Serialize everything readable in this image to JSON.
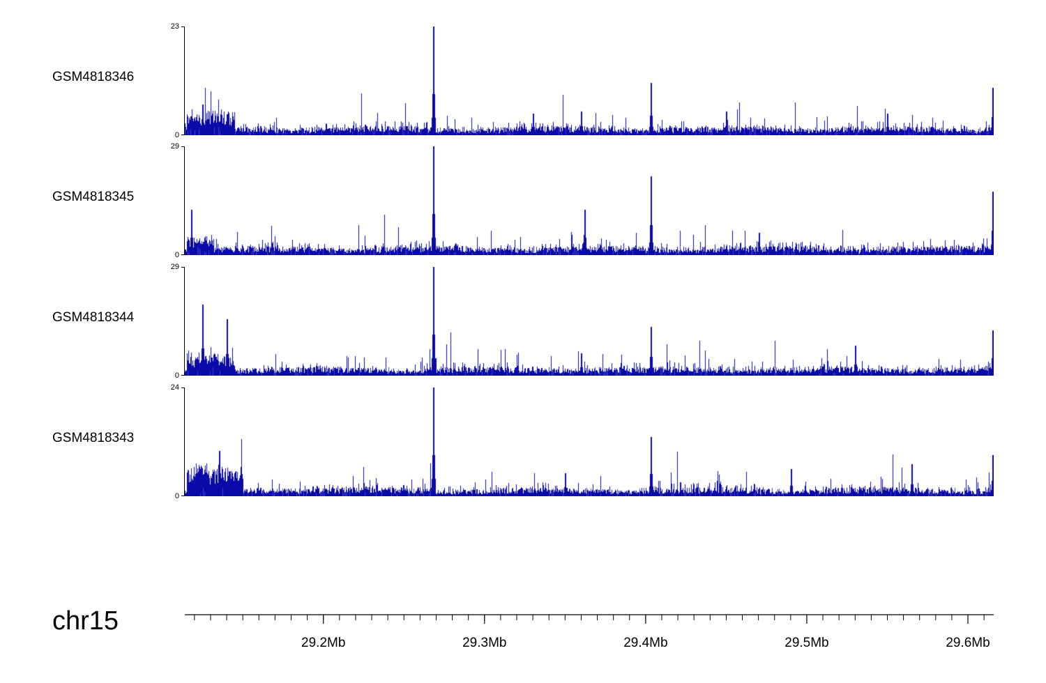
{
  "page": {
    "background": "#ffffff"
  },
  "chart_data": {
    "type": "area",
    "title": "",
    "description": "Genome browser coverage tracks (read pileup signal) for four GEO samples over a region of chromosome 15",
    "signal_color": "#0a0aa8",
    "axis_color": "#000000",
    "x_axis": {
      "label": "chr15",
      "unit": "Mb",
      "range": [
        29.114,
        29.616
      ],
      "ticks": [
        29.2,
        29.3,
        29.4,
        29.5,
        29.6
      ],
      "tick_labels": [
        "29.2Mb",
        "29.3Mb",
        "29.4Mb",
        "29.5Mb",
        "29.6Mb"
      ]
    },
    "y_zero_label": "0",
    "tracks": [
      {
        "label": "GSM4818346",
        "ymax": 23,
        "ymax_label": "23",
        "ymin": 0,
        "peaks": [
          [
            29.268,
            23
          ],
          [
            29.403,
            11
          ],
          [
            29.615,
            10
          ],
          [
            29.125,
            6.5
          ],
          [
            29.36,
            5
          ],
          [
            29.33,
            4.5
          ],
          [
            29.45,
            5
          ],
          [
            29.55,
            4.5
          ]
        ],
        "elevated_regions": [
          {
            "start": 29.115,
            "end": 29.145,
            "level": 0.16
          }
        ]
      },
      {
        "label": "GSM4818345",
        "ymax": 29,
        "ymax_label": "29",
        "ymin": 0,
        "peaks": [
          [
            29.268,
            29
          ],
          [
            29.403,
            21
          ],
          [
            29.362,
            12
          ],
          [
            29.118,
            12
          ],
          [
            29.615,
            17
          ],
          [
            29.47,
            6
          ]
        ],
        "elevated_regions": [
          {
            "start": 29.115,
            "end": 29.132,
            "level": 0.14
          }
        ]
      },
      {
        "label": "GSM4818344",
        "ymax": 29,
        "ymax_label": "29",
        "ymin": 0,
        "peaks": [
          [
            29.268,
            29
          ],
          [
            29.125,
            19
          ],
          [
            29.14,
            15
          ],
          [
            29.403,
            13
          ],
          [
            29.615,
            12
          ],
          [
            29.53,
            8
          ],
          [
            29.36,
            6
          ]
        ],
        "elevated_regions": [
          {
            "start": 29.115,
            "end": 29.145,
            "level": 0.14
          }
        ]
      },
      {
        "label": "GSM4818343",
        "ymax": 24,
        "ymax_label": "24",
        "ymin": 0,
        "peaks": [
          [
            29.268,
            24
          ],
          [
            29.403,
            13
          ],
          [
            29.135,
            10
          ],
          [
            29.615,
            9
          ],
          [
            29.565,
            7
          ],
          [
            29.49,
            6
          ],
          [
            29.35,
            5
          ]
        ],
        "elevated_regions": [
          {
            "start": 29.115,
            "end": 29.15,
            "level": 0.22
          }
        ]
      }
    ]
  }
}
